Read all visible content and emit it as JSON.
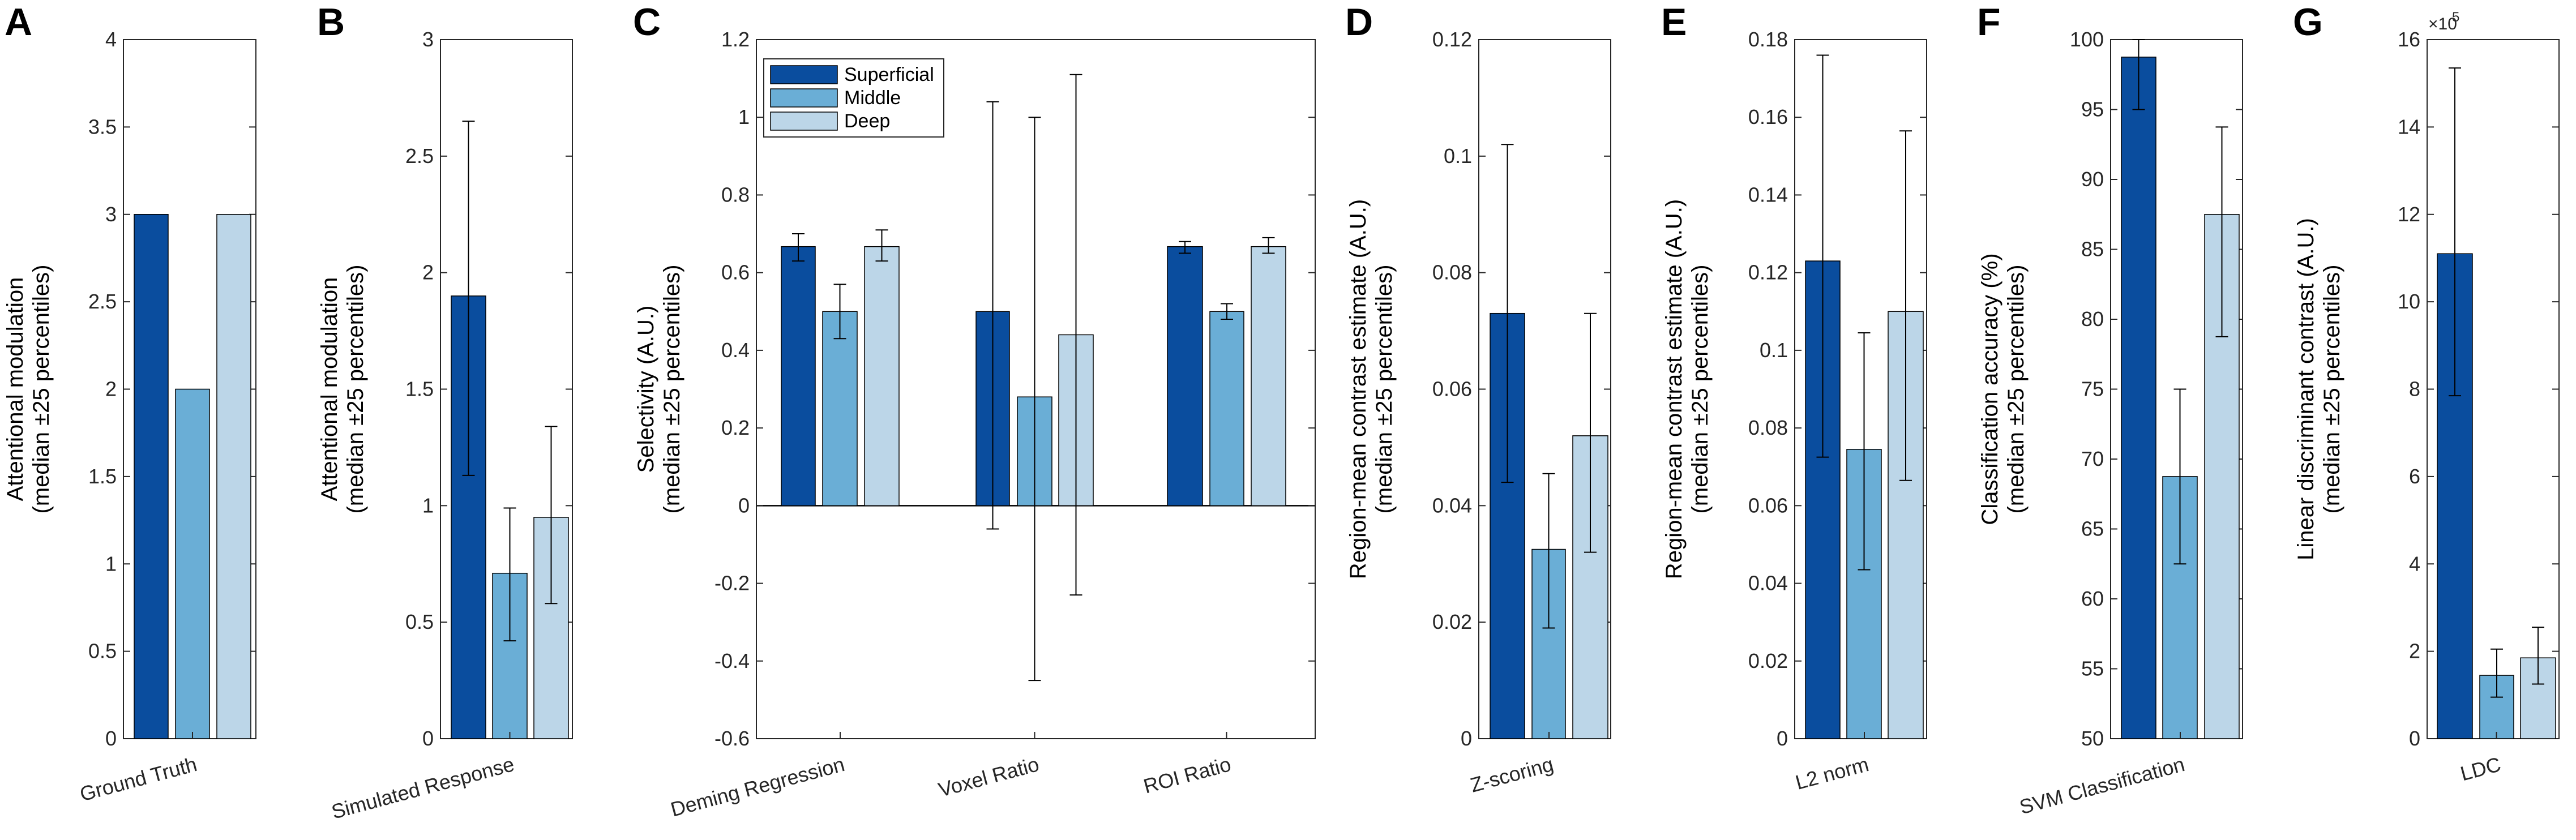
{
  "colors": {
    "superficial": "#0a4d9e",
    "middle": "#6aaed6",
    "deep": "#bcd6e8",
    "axis": "#262626",
    "zero_line": "#000000"
  },
  "legend": {
    "entries": [
      "Superficial",
      "Middle",
      "Deep"
    ]
  },
  "chart_data": [
    {
      "panel": "A",
      "type": "bar",
      "categories": [
        "Ground Truth"
      ],
      "series": [
        {
          "name": "Superficial",
          "values": [
            3.0
          ],
          "err_low": [
            null
          ],
          "err_high": [
            null
          ]
        },
        {
          "name": "Middle",
          "values": [
            2.0
          ],
          "err_low": [
            null
          ],
          "err_high": [
            null
          ]
        },
        {
          "name": "Deep",
          "values": [
            3.0
          ],
          "err_low": [
            null
          ],
          "err_high": [
            null
          ]
        }
      ],
      "ylabel": [
        "Attentional modulation",
        "(median ±25 percentiles)"
      ],
      "ylim": [
        0,
        4
      ],
      "yticks": [
        0,
        0.5,
        1,
        1.5,
        2,
        2.5,
        3,
        3.5,
        4
      ],
      "ytick_labels": [
        "0",
        "0.5",
        "1",
        "1.5",
        "2",
        "2.5",
        "3",
        "3.5",
        "4"
      ]
    },
    {
      "panel": "B",
      "type": "bar",
      "categories": [
        "Simulated Response"
      ],
      "series": [
        {
          "name": "Superficial",
          "values": [
            1.9
          ],
          "err_low": [
            1.13
          ],
          "err_high": [
            2.65
          ]
        },
        {
          "name": "Middle",
          "values": [
            0.71
          ],
          "err_low": [
            0.42
          ],
          "err_high": [
            0.99
          ]
        },
        {
          "name": "Deep",
          "values": [
            0.95
          ],
          "err_low": [
            0.58
          ],
          "err_high": [
            1.34
          ]
        }
      ],
      "ylabel": [
        "Attentional modulation",
        "(median ±25 percentiles)"
      ],
      "ylim": [
        0,
        3
      ],
      "yticks": [
        0,
        0.5,
        1,
        1.5,
        2,
        2.5,
        3
      ],
      "ytick_labels": [
        "0",
        "0.5",
        "1",
        "1.5",
        "2",
        "2.5",
        "3"
      ]
    },
    {
      "panel": "C",
      "type": "bar",
      "categories": [
        "Deming Regression",
        "Voxel Ratio",
        "ROI Ratio"
      ],
      "series": [
        {
          "name": "Superficial",
          "values": [
            0.667,
            0.5,
            0.667
          ],
          "err_low": [
            0.63,
            -0.06,
            0.65
          ],
          "err_high": [
            0.7,
            1.04,
            0.68
          ]
        },
        {
          "name": "Middle",
          "values": [
            0.5,
            0.28,
            0.5
          ],
          "err_low": [
            0.43,
            -0.45,
            0.48
          ],
          "err_high": [
            0.57,
            1.0,
            0.52
          ]
        },
        {
          "name": "Deep",
          "values": [
            0.667,
            0.44,
            0.667
          ],
          "err_low": [
            0.63,
            -0.23,
            0.65
          ],
          "err_high": [
            0.71,
            1.11,
            0.69
          ]
        }
      ],
      "ylabel": [
        "Selectivity (A.U.)",
        "(median ±25 percentiles)"
      ],
      "ylim": [
        -0.6,
        1.2
      ],
      "yticks": [
        -0.6,
        -0.4,
        -0.2,
        0,
        0.2,
        0.4,
        0.6,
        0.8,
        1,
        1.2
      ],
      "ytick_labels": [
        "-0.6",
        "-0.4",
        "-0.2",
        "0",
        "0.2",
        "0.4",
        "0.6",
        "0.8",
        "1",
        "1.2"
      ],
      "legend_location": "top-left"
    },
    {
      "panel": "D",
      "type": "bar",
      "categories": [
        "Z-scoring"
      ],
      "series": [
        {
          "name": "Superficial",
          "values": [
            0.073
          ],
          "err_low": [
            0.044
          ],
          "err_high": [
            0.102
          ]
        },
        {
          "name": "Middle",
          "values": [
            0.0325
          ],
          "err_low": [
            0.019
          ],
          "err_high": [
            0.0455
          ]
        },
        {
          "name": "Deep",
          "values": [
            0.052
          ],
          "err_low": [
            0.032
          ],
          "err_high": [
            0.073
          ]
        }
      ],
      "ylabel": [
        "Region-mean contrast estimate (A.U.)",
        "(median ±25 percentiles)"
      ],
      "ylim": [
        0,
        0.12
      ],
      "yticks": [
        0,
        0.02,
        0.04,
        0.06,
        0.08,
        0.1,
        0.12
      ],
      "ytick_labels": [
        "0",
        "0.02",
        "0.04",
        "0.06",
        "0.08",
        "0.1",
        "0.12"
      ]
    },
    {
      "panel": "E",
      "type": "bar",
      "categories": [
        "L2 norm"
      ],
      "series": [
        {
          "name": "Superficial",
          "values": [
            0.123
          ],
          "err_low": [
            0.0725
          ],
          "err_high": [
            0.176
          ]
        },
        {
          "name": "Middle",
          "values": [
            0.0745
          ],
          "err_low": [
            0.0435
          ],
          "err_high": [
            0.1045
          ]
        },
        {
          "name": "Deep",
          "values": [
            0.11
          ],
          "err_low": [
            0.0665
          ],
          "err_high": [
            0.1565
          ]
        }
      ],
      "ylabel": [
        "Region-mean contrast estimate (A.U.)",
        "(median ±25 percentiles)"
      ],
      "ylim": [
        0,
        0.18
      ],
      "yticks": [
        0,
        0.02,
        0.04,
        0.06,
        0.08,
        0.1,
        0.12,
        0.14,
        0.16,
        0.18
      ],
      "ytick_labels": [
        "0",
        "0.02",
        "0.04",
        "0.06",
        "0.08",
        "0.1",
        "0.12",
        "0.14",
        "0.16",
        "0.18"
      ]
    },
    {
      "panel": "F",
      "type": "bar",
      "categories": [
        "SVM Classification"
      ],
      "series": [
        {
          "name": "Superficial",
          "values": [
            98.75
          ],
          "err_low": [
            95.0
          ],
          "err_high": [
            100.0
          ]
        },
        {
          "name": "Middle",
          "values": [
            68.75
          ],
          "err_low": [
            62.5
          ],
          "err_high": [
            75.0
          ]
        },
        {
          "name": "Deep",
          "values": [
            87.5
          ],
          "err_low": [
            78.75
          ],
          "err_high": [
            93.75
          ]
        }
      ],
      "ylabel": [
        "Classification accuracy (%)",
        "(median ±25 percentiles)"
      ],
      "ylim": [
        50,
        100
      ],
      "yticks": [
        50,
        55,
        60,
        65,
        70,
        75,
        80,
        85,
        90,
        95,
        100
      ],
      "ytick_labels": [
        "50",
        "55",
        "60",
        "65",
        "70",
        "75",
        "80",
        "85",
        "90",
        "95",
        "100"
      ]
    },
    {
      "panel": "G",
      "type": "bar",
      "categories": [
        "LDC"
      ],
      "series": [
        {
          "name": "Superficial",
          "values": [
            11.1
          ],
          "err_low": [
            7.85
          ],
          "err_high": [
            15.35
          ]
        },
        {
          "name": "Middle",
          "values": [
            1.45
          ],
          "err_low": [
            0.95
          ],
          "err_high": [
            2.05
          ]
        },
        {
          "name": "Deep",
          "values": [
            1.85
          ],
          "err_low": [
            1.25
          ],
          "err_high": [
            2.55
          ]
        }
      ],
      "ylabel": [
        "Linear discriminant contrast (A.U.)",
        "(median ±25 percentiles)"
      ],
      "ylim": [
        0,
        16
      ],
      "yticks": [
        0,
        2,
        4,
        6,
        8,
        10,
        12,
        14,
        16
      ],
      "ytick_labels": [
        "0",
        "2",
        "4",
        "6",
        "8",
        "10",
        "12",
        "14",
        "16"
      ],
      "y_exponent_label": "×10",
      "y_exponent": "5"
    }
  ]
}
